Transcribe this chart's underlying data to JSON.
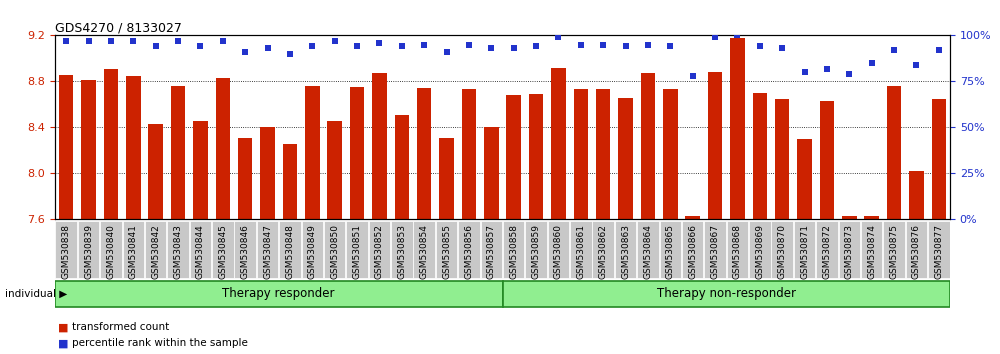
{
  "title": "GDS4270 / 8133027",
  "categories": [
    "GSM530838",
    "GSM530839",
    "GSM530840",
    "GSM530841",
    "GSM530842",
    "GSM530843",
    "GSM530844",
    "GSM530845",
    "GSM530846",
    "GSM530847",
    "GSM530848",
    "GSM530849",
    "GSM530850",
    "GSM530851",
    "GSM530852",
    "GSM530853",
    "GSM530854",
    "GSM530855",
    "GSM530856",
    "GSM530857",
    "GSM530858",
    "GSM530859",
    "GSM530860",
    "GSM530861",
    "GSM530862",
    "GSM530863",
    "GSM530864",
    "GSM530865",
    "GSM530866",
    "GSM530867",
    "GSM530868",
    "GSM530869",
    "GSM530870",
    "GSM530871",
    "GSM530872",
    "GSM530873",
    "GSM530874",
    "GSM530875",
    "GSM530876",
    "GSM530877"
  ],
  "bar_values": [
    8.86,
    8.81,
    8.91,
    8.85,
    8.43,
    8.76,
    8.46,
    8.83,
    8.31,
    8.4,
    8.26,
    8.76,
    8.46,
    8.75,
    8.87,
    8.51,
    8.74,
    8.31,
    8.73,
    8.4,
    8.68,
    8.69,
    8.92,
    8.73,
    8.73,
    8.66,
    8.87,
    8.73,
    7.63,
    8.88,
    9.18,
    8.7,
    8.65,
    8.3,
    8.63,
    7.63,
    7.63,
    8.76,
    8.02,
    8.65
  ],
  "percentile_values": [
    97,
    97,
    97,
    97,
    94,
    97,
    94,
    97,
    91,
    93,
    90,
    94,
    97,
    94,
    96,
    94,
    95,
    91,
    95,
    93,
    93,
    94,
    99,
    95,
    95,
    94,
    95,
    94,
    78,
    99,
    100,
    94,
    93,
    80,
    82,
    79,
    85,
    92,
    84,
    92
  ],
  "group1_label": "Therapy responder",
  "group1_count": 20,
  "group2_label": "Therapy non-responder",
  "group2_count": 20,
  "ylim_left": [
    7.6,
    9.2
  ],
  "ylim_right": [
    0,
    100
  ],
  "bar_color": "#cc2200",
  "dot_color": "#2233cc",
  "group_bg_color": "#90ee90",
  "group_border_color": "#228822",
  "tick_bg_color": "#c8c8c8",
  "ylabel_left_color": "#cc2200",
  "ylabel_right_color": "#2233cc",
  "legend_bar_label": "transformed count",
  "legend_dot_label": "percentile rank within the sample",
  "individual_label": "individual"
}
